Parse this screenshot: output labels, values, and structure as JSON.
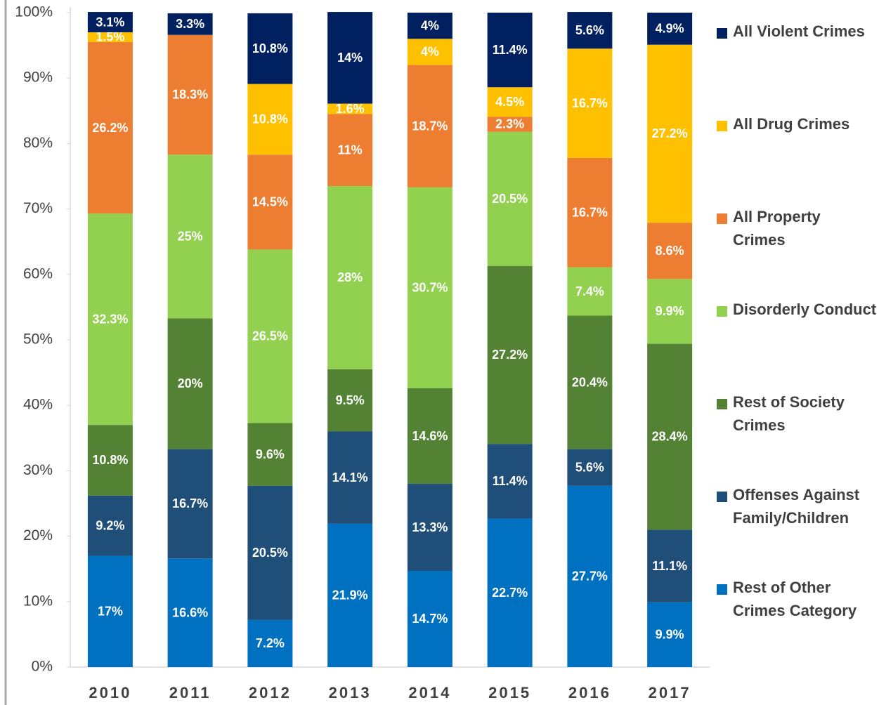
{
  "chart_data": {
    "type": "stacked_bar",
    "categories": [
      "2010",
      "2011",
      "2012",
      "2013",
      "2014",
      "2015",
      "2016",
      "2017"
    ],
    "ylim": [
      0,
      100
    ],
    "yticks": [
      {
        "value": 0,
        "label": "0%"
      },
      {
        "value": 10,
        "label": "10%"
      },
      {
        "value": 20,
        "label": "20%"
      },
      {
        "value": 30,
        "label": "30%"
      },
      {
        "value": 40,
        "label": "40%"
      },
      {
        "value": 50,
        "label": "50%"
      },
      {
        "value": 60,
        "label": "60%"
      },
      {
        "value": 70,
        "label": "70%"
      },
      {
        "value": 80,
        "label": "80%"
      },
      {
        "value": 90,
        "label": "90%"
      },
      {
        "value": 100,
        "label": "100%"
      }
    ],
    "grid": false,
    "series": [
      {
        "name": "Rest of Other Crimes Category",
        "color": "#0070c0",
        "values": [
          17,
          16.6,
          7.2,
          21.9,
          14.7,
          22.7,
          27.7,
          9.9
        ],
        "value_labels": [
          "17%",
          "16.6%",
          "7.2%",
          "21.9%",
          "14.7%",
          "22.7%",
          "27.7%",
          "9.9%"
        ]
      },
      {
        "name": "Offenses Against Family/Children",
        "color": "#1f4e79",
        "values": [
          9.2,
          16.7,
          20.5,
          14.1,
          13.3,
          11.4,
          5.6,
          11.1
        ],
        "value_labels": [
          "9.2%",
          "16.7%",
          "20.5%",
          "14.1%",
          "13.3%",
          "11.4%",
          "5.6%",
          "11.1%"
        ]
      },
      {
        "name": "Rest of Society Crimes",
        "color": "#548235",
        "values": [
          10.8,
          20,
          9.6,
          9.5,
          14.6,
          27.2,
          20.4,
          28.4
        ],
        "value_labels": [
          "10.8%",
          "20%",
          "9.6%",
          "9.5%",
          "14.6%",
          "27.2%",
          "20.4%",
          "28.4%"
        ]
      },
      {
        "name": "Disorderly Conduct",
        "color": "#92d050",
        "values": [
          32.3,
          25,
          26.5,
          28,
          30.7,
          20.5,
          7.4,
          9.9
        ],
        "value_labels": [
          "32.3%",
          "25%",
          "26.5%",
          "28%",
          "30.7%",
          "20.5%",
          "7.4%",
          "9.9%"
        ]
      },
      {
        "name": "All Property Crimes",
        "color": "#ed7d31",
        "values": [
          26.2,
          18.3,
          14.5,
          11,
          18.7,
          2.3,
          16.7,
          8.6
        ],
        "value_labels": [
          "26.2%",
          "18.3%",
          "14.5%",
          "11%",
          "18.7%",
          "2.3%",
          "16.7%",
          "8.6%"
        ]
      },
      {
        "name": "All Drug Crimes",
        "color": "#ffc000",
        "values": [
          1.5,
          null,
          10.8,
          1.6,
          4,
          4.5,
          16.7,
          27.2
        ],
        "value_labels": [
          "1.5%",
          null,
          "10.8%",
          "1.6%",
          "4%",
          "4.5%",
          "16.7%",
          "27.2%"
        ]
      },
      {
        "name": "All Violent Crimes",
        "color": "#002060",
        "values": [
          3.1,
          3.3,
          10.8,
          14,
          4,
          11.4,
          5.6,
          4.9
        ],
        "value_labels": [
          "3.1%",
          "3.3%",
          "10.8%",
          "14%",
          "4%",
          "11.4%",
          "5.6%",
          "4.9%"
        ]
      }
    ]
  }
}
